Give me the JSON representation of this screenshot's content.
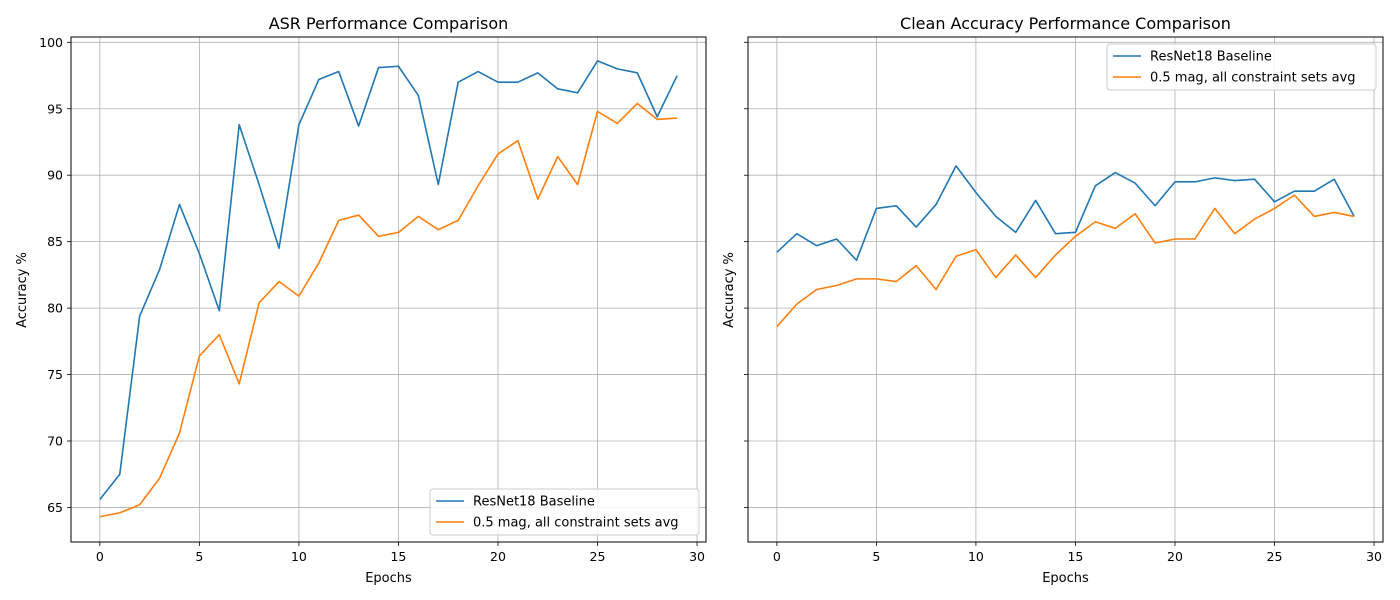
{
  "chart_data": [
    {
      "type": "line",
      "title": "ASR Performance Comparison",
      "xlabel": "Epochs",
      "ylabel": "Accuracy %",
      "xlim": [
        -1.45,
        30.45
      ],
      "ylim": [
        62.4,
        100.4
      ],
      "xticks": [
        0,
        5,
        10,
        15,
        20,
        25,
        30
      ],
      "yticks": [
        65,
        70,
        75,
        80,
        85,
        90,
        95,
        100
      ],
      "grid": true,
      "legend_position": "lower-right",
      "x": [
        0,
        1,
        2,
        3,
        4,
        5,
        6,
        7,
        8,
        9,
        10,
        11,
        12,
        13,
        14,
        15,
        16,
        17,
        18,
        19,
        20,
        21,
        22,
        23,
        24,
        25,
        26,
        27,
        28,
        29
      ],
      "series": [
        {
          "name": "ResNet18 Baseline",
          "color": "#1f77b4",
          "values": [
            65.6,
            67.5,
            79.4,
            82.9,
            87.8,
            84.1,
            79.8,
            93.8,
            89.3,
            84.5,
            93.8,
            97.2,
            97.8,
            93.7,
            98.1,
            98.2,
            96.0,
            89.3,
            97.0,
            97.8,
            97.0,
            97.0,
            97.7,
            96.5,
            96.2,
            98.6,
            98.0,
            97.7,
            94.4,
            97.5
          ]
        },
        {
          "name": "0.5 mag, all constraint sets avg",
          "color": "#ff7f0e",
          "values": [
            64.3,
            64.6,
            65.2,
            67.2,
            70.6,
            76.4,
            78.0,
            74.3,
            80.4,
            82.0,
            80.9,
            83.4,
            86.6,
            87.0,
            85.4,
            85.7,
            86.9,
            85.9,
            86.6,
            89.2,
            91.6,
            92.6,
            88.2,
            91.4,
            89.3,
            94.8,
            93.9,
            95.4,
            94.2,
            94.3
          ]
        }
      ]
    },
    {
      "type": "line",
      "title": "Clean Accuracy Performance Comparison",
      "xlabel": "Epochs",
      "ylabel": "Accuracy %",
      "xlim": [
        -1.45,
        30.45
      ],
      "ylim": [
        62.4,
        100.4
      ],
      "xticks": [
        0,
        5,
        10,
        15,
        20,
        25,
        30
      ],
      "yticks": [
        65,
        70,
        75,
        80,
        85,
        90,
        95,
        100
      ],
      "ytick_labels_shown": false,
      "grid": true,
      "legend_position": "upper-right",
      "x": [
        0,
        1,
        2,
        3,
        4,
        5,
        6,
        7,
        8,
        9,
        10,
        11,
        12,
        13,
        14,
        15,
        16,
        17,
        18,
        19,
        20,
        21,
        22,
        23,
        24,
        25,
        26,
        27,
        28,
        29
      ],
      "series": [
        {
          "name": "ResNet18 Baseline",
          "color": "#1f77b4",
          "values": [
            84.2,
            85.6,
            84.7,
            85.2,
            83.6,
            87.5,
            87.7,
            86.1,
            87.8,
            90.7,
            88.7,
            86.9,
            85.7,
            88.1,
            85.6,
            85.7,
            89.2,
            90.2,
            89.4,
            87.7,
            89.5,
            89.5,
            89.8,
            89.6,
            89.7,
            88.0,
            88.8,
            88.8,
            89.7,
            86.9
          ]
        },
        {
          "name": "0.5 mag, all constraint sets avg",
          "color": "#ff7f0e",
          "values": [
            78.6,
            80.3,
            81.4,
            81.7,
            82.2,
            82.2,
            82.0,
            83.2,
            81.4,
            83.9,
            84.4,
            82.3,
            84.0,
            82.3,
            84.0,
            85.4,
            86.5,
            86.0,
            87.1,
            84.9,
            85.2,
            85.2,
            87.5,
            85.6,
            86.7,
            87.5,
            88.5,
            86.9,
            87.2,
            86.9
          ]
        }
      ]
    }
  ]
}
